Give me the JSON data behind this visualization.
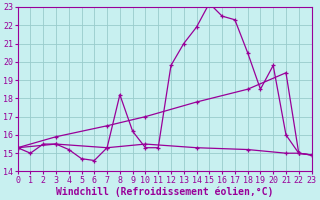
{
  "title": "",
  "xlabel": "Windchill (Refroidissement éolien,°C)",
  "ylabel": "",
  "xlim": [
    0,
    23
  ],
  "ylim": [
    14,
    23
  ],
  "xticks": [
    0,
    1,
    2,
    3,
    4,
    5,
    6,
    7,
    8,
    9,
    10,
    11,
    12,
    13,
    14,
    15,
    16,
    17,
    18,
    19,
    20,
    21,
    22,
    23
  ],
  "yticks": [
    14,
    15,
    16,
    17,
    18,
    19,
    20,
    21,
    22,
    23
  ],
  "bg_color": "#c8f0f0",
  "line_color": "#990099",
  "grid_color": "#99cccc",
  "line1_x": [
    0,
    1,
    2,
    3,
    4,
    5,
    6,
    7,
    8,
    9,
    10,
    11,
    12,
    13,
    14,
    15,
    16,
    17,
    18,
    19,
    20,
    21,
    22,
    23
  ],
  "line1_y": [
    15.3,
    15.0,
    15.5,
    15.5,
    15.2,
    14.7,
    14.6,
    15.3,
    18.2,
    16.2,
    15.3,
    15.3,
    19.8,
    21.0,
    21.9,
    23.2,
    22.5,
    22.3,
    20.5,
    18.5,
    19.8,
    16.0,
    15.0,
    14.9
  ],
  "line2_x": [
    0,
    3,
    7,
    10,
    14,
    18,
    21,
    22,
    23
  ],
  "line2_y": [
    15.3,
    15.5,
    15.3,
    15.5,
    15.3,
    15.2,
    15.0,
    15.0,
    14.9
  ],
  "line3_x": [
    0,
    3,
    7,
    10,
    14,
    18,
    21,
    22,
    23
  ],
  "line3_y": [
    15.3,
    15.9,
    16.5,
    17.0,
    17.8,
    18.5,
    19.4,
    15.0,
    14.9
  ],
  "font_family": "monospace",
  "tick_fontsize": 6.0,
  "label_fontsize": 7.0
}
